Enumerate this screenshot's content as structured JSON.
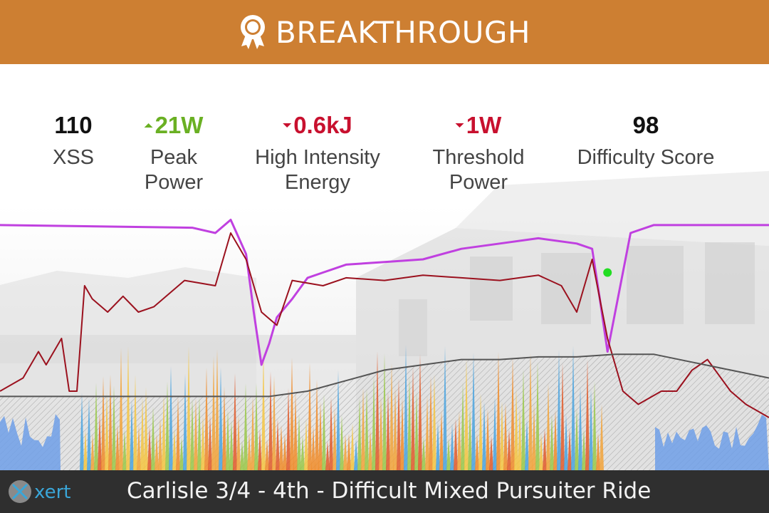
{
  "header": {
    "title": "BREAKTHROUGH",
    "icon": "award-ribbon-icon",
    "color": "#cd7f32"
  },
  "stats": [
    {
      "value": "110",
      "label_lines": [
        "XSS"
      ],
      "trend": "none",
      "color": "#111111"
    },
    {
      "value": "21W",
      "label_lines": [
        "Peak",
        "Power"
      ],
      "trend": "up",
      "color": "#6ab023"
    },
    {
      "value": "0.6kJ",
      "label_lines": [
        "High Intensity",
        "Energy"
      ],
      "trend": "down",
      "color": "#c8102e"
    },
    {
      "value": "1W",
      "label_lines": [
        "Threshold",
        "Power"
      ],
      "trend": "down",
      "color": "#c8102e"
    },
    {
      "value": "98",
      "label_lines": [
        "Difficulty Score"
      ],
      "trend": "none",
      "color": "#111111"
    }
  ],
  "chart_data": {
    "type": "line",
    "x_range": [
      0,
      100
    ],
    "y_range": [
      0,
      100
    ],
    "grid": false,
    "series": [
      {
        "color": "#c040e0",
        "x": [
          0,
          25,
          28,
          30,
          32,
          33,
          34,
          35,
          36,
          38,
          40,
          42,
          45,
          50,
          55,
          60,
          65,
          70,
          75,
          77,
          78,
          79,
          80,
          82,
          85,
          100
        ],
        "y": [
          93,
          92,
          90,
          95,
          82,
          60,
          40,
          48,
          58,
          65,
          73,
          75,
          78,
          79,
          80,
          84,
          86,
          88,
          86,
          84,
          65,
          45,
          60,
          90,
          93,
          93
        ]
      },
      {
        "color": "#9b111e",
        "x": [
          0,
          3,
          5,
          6,
          8,
          9,
          10,
          11,
          12,
          14,
          16,
          18,
          20,
          24,
          28,
          30,
          32,
          33,
          34,
          36,
          38,
          42,
          45,
          50,
          55,
          60,
          65,
          70,
          73,
          75,
          77,
          78,
          79,
          80,
          81,
          83,
          86,
          88,
          90,
          92,
          95,
          97,
          100
        ],
        "y": [
          30,
          35,
          45,
          40,
          50,
          30,
          30,
          70,
          65,
          60,
          66,
          60,
          62,
          72,
          70,
          90,
          80,
          70,
          60,
          55,
          72,
          70,
          73,
          72,
          74,
          73,
          72,
          74,
          70,
          60,
          80,
          65,
          50,
          40,
          30,
          25,
          30,
          30,
          38,
          42,
          30,
          25,
          20
        ]
      },
      {
        "color": "#555555",
        "x": [
          0,
          35,
          40,
          45,
          50,
          55,
          60,
          65,
          70,
          75,
          80,
          85,
          90,
          95,
          100
        ],
        "y": [
          28,
          28,
          30,
          34,
          38,
          40,
          42,
          42,
          43,
          43,
          44,
          44,
          41,
          38,
          35
        ]
      }
    ]
  },
  "footer": {
    "logo_text": "xert",
    "title": "Carlisle 3/4 - 4th - Difficult Mixed Pursuiter Ride"
  }
}
